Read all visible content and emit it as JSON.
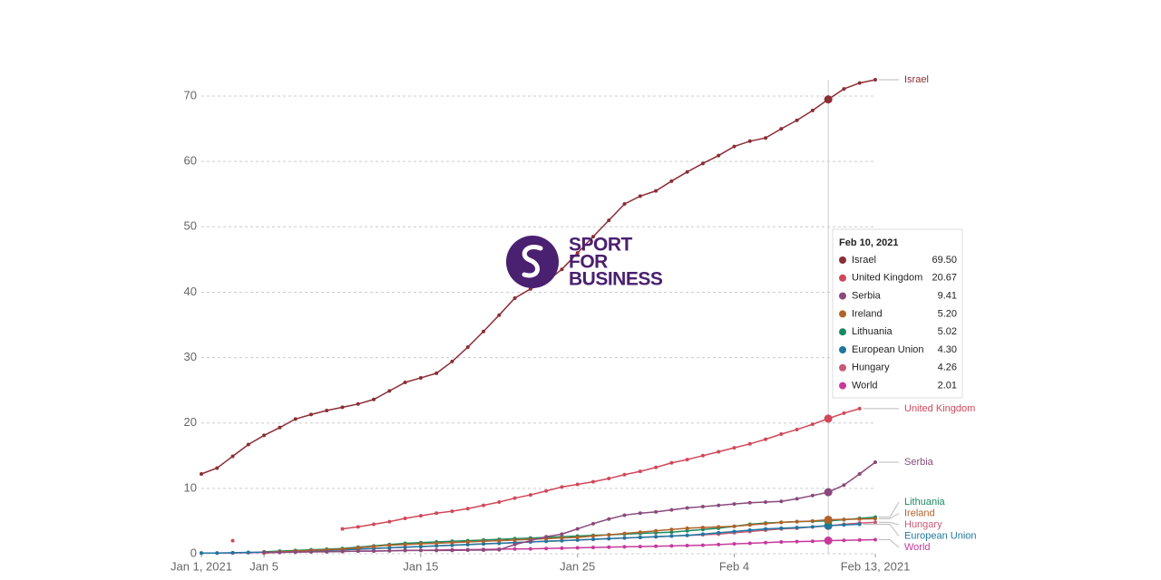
{
  "chart_data": {
    "type": "line",
    "x": [
      "2021-01-01",
      "2021-01-02",
      "2021-01-03",
      "2021-01-04",
      "2021-01-05",
      "2021-01-06",
      "2021-01-07",
      "2021-01-08",
      "2021-01-09",
      "2021-01-10",
      "2021-01-11",
      "2021-01-12",
      "2021-01-13",
      "2021-01-14",
      "2021-01-15",
      "2021-01-16",
      "2021-01-17",
      "2021-01-18",
      "2021-01-19",
      "2021-01-20",
      "2021-01-21",
      "2021-01-22",
      "2021-01-23",
      "2021-01-24",
      "2021-01-25",
      "2021-01-26",
      "2021-01-27",
      "2021-01-28",
      "2021-01-29",
      "2021-01-30",
      "2021-01-31",
      "2021-02-01",
      "2021-02-02",
      "2021-02-03",
      "2021-02-04",
      "2021-02-05",
      "2021-02-06",
      "2021-02-07",
      "2021-02-08",
      "2021-02-09",
      "2021-02-10",
      "2021-02-11",
      "2021-02-12",
      "2021-02-13"
    ],
    "xlim": [
      "2021-01-01",
      "2021-02-13"
    ],
    "xticks": [
      {
        "value": "2021-01-01",
        "label": "Jan 1, 2021"
      },
      {
        "value": "2021-01-05",
        "label": "Jan 5"
      },
      {
        "value": "2021-01-15",
        "label": "Jan 15"
      },
      {
        "value": "2021-01-25",
        "label": "Jan 25"
      },
      {
        "value": "2021-02-04",
        "label": "Feb 4"
      },
      {
        "value": "2021-02-13",
        "label": "Feb 13, 2021"
      }
    ],
    "ylim": [
      0,
      72.5
    ],
    "yticks": [
      0,
      10,
      20,
      30,
      40,
      50,
      60,
      70
    ],
    "grid": true,
    "series": [
      {
        "name": "Israel",
        "color": "#8b2e35",
        "values": [
          12.2,
          13.1,
          14.9,
          16.7,
          18.1,
          19.3,
          20.6,
          21.3,
          21.9,
          22.4,
          22.9,
          23.6,
          24.9,
          26.2,
          26.9,
          27.6,
          29.4,
          31.6,
          34.0,
          36.5,
          39.1,
          40.5,
          41.6,
          43.5,
          46.0,
          48.5,
          51.0,
          53.5,
          54.7,
          55.5,
          57.0,
          58.4,
          59.7,
          60.9,
          62.3,
          63.1,
          63.6,
          65.0,
          66.3,
          67.8,
          69.5,
          71.1,
          72.0,
          72.5
        ]
      },
      {
        "name": "United Kingdom",
        "color": "#d0485a",
        "values": [
          null,
          null,
          2.0,
          null,
          null,
          null,
          null,
          null,
          null,
          3.8,
          4.1,
          4.5,
          4.9,
          5.4,
          5.8,
          6.2,
          6.5,
          6.9,
          7.4,
          7.9,
          8.5,
          9.0,
          9.6,
          10.2,
          10.6,
          11.0,
          11.5,
          12.1,
          12.6,
          13.2,
          13.9,
          14.4,
          15.0,
          15.6,
          16.2,
          16.8,
          17.5,
          18.3,
          19.0,
          19.8,
          20.67,
          21.5,
          22.2,
          null
        ]
      },
      {
        "name": "Serbia",
        "color": "#8a4a7a",
        "values": [
          null,
          null,
          null,
          null,
          0.2,
          0.2,
          0.25,
          0.3,
          0.3,
          0.35,
          0.4,
          0.4,
          0.45,
          0.5,
          0.5,
          0.5,
          0.5,
          0.55,
          0.55,
          0.6,
          1.4,
          2.0,
          2.6,
          3.0,
          3.8,
          4.6,
          5.3,
          5.9,
          6.2,
          6.4,
          6.7,
          7.0,
          7.2,
          7.4,
          7.6,
          7.8,
          7.9,
          8.0,
          8.4,
          8.9,
          9.41,
          10.5,
          12.2,
          14.0
        ]
      },
      {
        "name": "Ireland",
        "color": "#b0622a",
        "values": [
          null,
          null,
          null,
          null,
          0.2,
          0.3,
          0.4,
          0.5,
          0.6,
          0.7,
          0.9,
          1.1,
          1.3,
          1.4,
          1.5,
          1.6,
          1.7,
          1.8,
          1.9,
          2.0,
          2.1,
          2.2,
          2.3,
          2.4,
          2.5,
          2.7,
          2.9,
          3.1,
          3.3,
          3.5,
          3.7,
          3.9,
          4.0,
          4.1,
          4.2,
          4.4,
          4.6,
          4.8,
          4.9,
          5.0,
          5.2,
          5.25,
          5.3,
          5.35
        ]
      },
      {
        "name": "Lithuania",
        "color": "#1a8a5f",
        "values": [
          null,
          null,
          null,
          null,
          0.3,
          0.4,
          0.5,
          0.6,
          0.7,
          0.8,
          1.0,
          1.2,
          1.4,
          1.6,
          1.7,
          1.8,
          1.9,
          2.0,
          2.1,
          2.2,
          2.3,
          2.4,
          2.5,
          2.6,
          2.7,
          2.8,
          2.9,
          3.0,
          3.1,
          3.2,
          3.3,
          3.5,
          3.7,
          3.9,
          4.2,
          4.5,
          4.7,
          4.8,
          4.9,
          4.95,
          5.02,
          5.2,
          5.4,
          5.6
        ]
      },
      {
        "name": "European Union",
        "color": "#1f77a0",
        "values": [
          0.1,
          0.1,
          0.15,
          0.2,
          0.25,
          0.3,
          0.35,
          0.4,
          0.5,
          0.6,
          0.7,
          0.8,
          0.9,
          1.0,
          1.1,
          1.2,
          1.3,
          1.4,
          1.5,
          1.6,
          1.7,
          1.8,
          1.9,
          2.0,
          2.1,
          2.2,
          2.3,
          2.4,
          2.5,
          2.6,
          2.7,
          2.8,
          3.0,
          3.2,
          3.4,
          3.6,
          3.8,
          3.9,
          4.0,
          4.1,
          4.3,
          4.4,
          4.5,
          null
        ]
      },
      {
        "name": "Hungary",
        "color": "#c85a78",
        "values": [
          null,
          null,
          null,
          null,
          0.1,
          0.2,
          0.3,
          0.4,
          0.5,
          0.6,
          0.7,
          0.8,
          0.9,
          1.0,
          1.1,
          1.2,
          1.3,
          1.4,
          1.5,
          1.6,
          1.7,
          1.8,
          1.9,
          2.0,
          2.1,
          2.2,
          2.3,
          2.4,
          2.5,
          2.6,
          2.7,
          2.8,
          2.9,
          3.0,
          3.2,
          3.4,
          3.6,
          3.8,
          3.9,
          4.1,
          4.26,
          4.5,
          4.7,
          4.8
        ]
      },
      {
        "name": "World",
        "color": "#c63a9a",
        "values": [
          0.1,
          0.1,
          0.12,
          0.15,
          0.2,
          0.22,
          0.25,
          0.3,
          0.32,
          0.35,
          0.4,
          0.42,
          0.45,
          0.5,
          0.52,
          0.55,
          0.6,
          0.62,
          0.65,
          0.7,
          0.72,
          0.75,
          0.8,
          0.85,
          0.9,
          0.95,
          1.0,
          1.05,
          1.1,
          1.15,
          1.2,
          1.25,
          1.3,
          1.4,
          1.5,
          1.6,
          1.7,
          1.8,
          1.85,
          1.9,
          2.01,
          2.05,
          2.1,
          2.15
        ]
      }
    ],
    "tooltip": {
      "title": "Feb 10, 2021",
      "value_labels": [
        "69.50",
        "20.67",
        "9.41",
        "5.20",
        "5.02",
        "4.30",
        "4.26",
        "2.01"
      ]
    },
    "watermark": [
      "SPORT",
      "FOR",
      "BUSINESS"
    ]
  }
}
